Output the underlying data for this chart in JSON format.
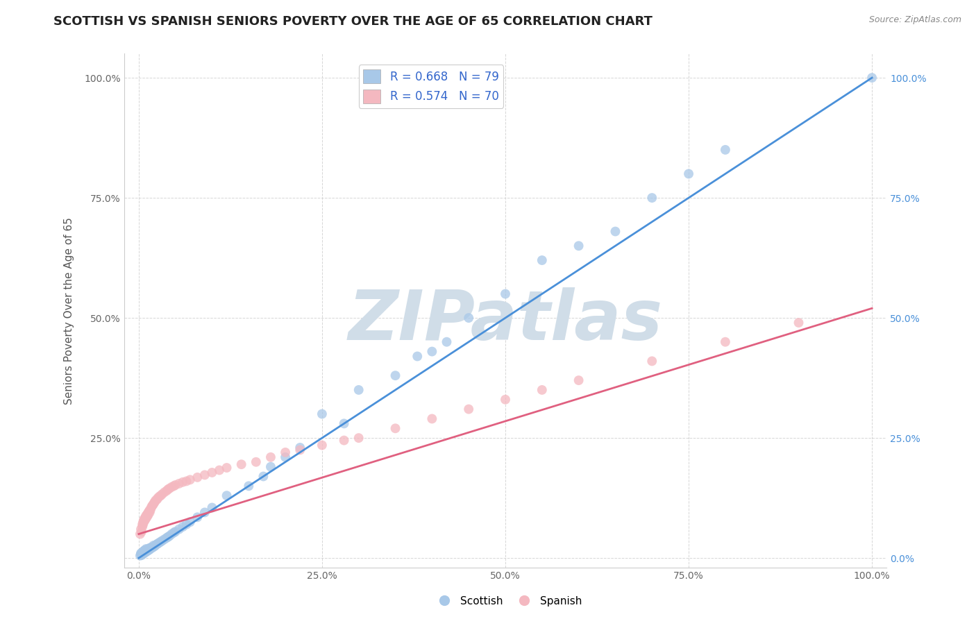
{
  "title": "SCOTTISH VS SPANISH SENIORS POVERTY OVER THE AGE OF 65 CORRELATION CHART",
  "source": "Source: ZipAtlas.com",
  "ylabel": "Seniors Poverty Over the Age of 65",
  "xlabel": "",
  "xlim": [
    -0.02,
    1.02
  ],
  "ylim": [
    -0.02,
    1.05
  ],
  "xticks": [
    0,
    0.25,
    0.5,
    0.75,
    1.0
  ],
  "yticks": [
    0,
    0.25,
    0.5,
    0.75,
    1.0
  ],
  "xticklabels": [
    "0.0%",
    "25.0%",
    "50.0%",
    "75.0%",
    "100.0%"
  ],
  "yticklabels": [
    "",
    "25.0%",
    "50.0%",
    "75.0%",
    "100.0%"
  ],
  "right_yticklabels": [
    "0.0%",
    "25.0%",
    "50.0%",
    "75.0%",
    "100.0%"
  ],
  "scottish_color": "#a8c8e8",
  "spanish_color": "#f4b8c0",
  "scottish_line_color": "#4a90d9",
  "spanish_line_color": "#e06080",
  "r_scottish": 0.668,
  "n_scottish": 79,
  "r_spanish": 0.574,
  "n_spanish": 70,
  "legend_color": "#3366cc",
  "watermark": "ZIPatlas",
  "scottish_line_x": [
    0.0,
    1.0
  ],
  "scottish_line_y": [
    0.0,
    1.0
  ],
  "spanish_line_x": [
    0.0,
    1.0
  ],
  "spanish_line_y": [
    0.05,
    0.52
  ],
  "scottish_data": [
    [
      0.002,
      0.005
    ],
    [
      0.003,
      0.008
    ],
    [
      0.003,
      0.01
    ],
    [
      0.004,
      0.006
    ],
    [
      0.004,
      0.009
    ],
    [
      0.005,
      0.008
    ],
    [
      0.005,
      0.01
    ],
    [
      0.005,
      0.012
    ],
    [
      0.006,
      0.009
    ],
    [
      0.006,
      0.011
    ],
    [
      0.006,
      0.013
    ],
    [
      0.007,
      0.01
    ],
    [
      0.007,
      0.012
    ],
    [
      0.007,
      0.015
    ],
    [
      0.008,
      0.011
    ],
    [
      0.008,
      0.013
    ],
    [
      0.008,
      0.016
    ],
    [
      0.009,
      0.012
    ],
    [
      0.009,
      0.015
    ],
    [
      0.01,
      0.013
    ],
    [
      0.01,
      0.016
    ],
    [
      0.01,
      0.019
    ],
    [
      0.011,
      0.014
    ],
    [
      0.011,
      0.017
    ],
    [
      0.012,
      0.015
    ],
    [
      0.012,
      0.018
    ],
    [
      0.013,
      0.016
    ],
    [
      0.013,
      0.019
    ],
    [
      0.014,
      0.017
    ],
    [
      0.015,
      0.018
    ],
    [
      0.015,
      0.021
    ],
    [
      0.016,
      0.02
    ],
    [
      0.017,
      0.022
    ],
    [
      0.018,
      0.021
    ],
    [
      0.02,
      0.023
    ],
    [
      0.02,
      0.026
    ],
    [
      0.022,
      0.025
    ],
    [
      0.023,
      0.027
    ],
    [
      0.025,
      0.029
    ],
    [
      0.026,
      0.03
    ],
    [
      0.028,
      0.032
    ],
    [
      0.03,
      0.034
    ],
    [
      0.032,
      0.036
    ],
    [
      0.035,
      0.039
    ],
    [
      0.038,
      0.042
    ],
    [
      0.04,
      0.044
    ],
    [
      0.042,
      0.046
    ],
    [
      0.045,
      0.05
    ],
    [
      0.048,
      0.053
    ],
    [
      0.05,
      0.055
    ],
    [
      0.055,
      0.06
    ],
    [
      0.06,
      0.065
    ],
    [
      0.065,
      0.07
    ],
    [
      0.07,
      0.075
    ],
    [
      0.08,
      0.085
    ],
    [
      0.09,
      0.095
    ],
    [
      0.1,
      0.105
    ],
    [
      0.12,
      0.13
    ],
    [
      0.15,
      0.15
    ],
    [
      0.17,
      0.17
    ],
    [
      0.18,
      0.19
    ],
    [
      0.2,
      0.21
    ],
    [
      0.22,
      0.23
    ],
    [
      0.25,
      0.3
    ],
    [
      0.28,
      0.28
    ],
    [
      0.3,
      0.35
    ],
    [
      0.35,
      0.38
    ],
    [
      0.38,
      0.42
    ],
    [
      0.4,
      0.43
    ],
    [
      0.42,
      0.45
    ],
    [
      0.45,
      0.5
    ],
    [
      0.5,
      0.55
    ],
    [
      0.55,
      0.62
    ],
    [
      0.6,
      0.65
    ],
    [
      0.65,
      0.68
    ],
    [
      0.7,
      0.75
    ],
    [
      0.75,
      0.8
    ],
    [
      0.8,
      0.85
    ],
    [
      1.0,
      1.0
    ]
  ],
  "spanish_data": [
    [
      0.002,
      0.05
    ],
    [
      0.003,
      0.06
    ],
    [
      0.004,
      0.055
    ],
    [
      0.005,
      0.07
    ],
    [
      0.005,
      0.065
    ],
    [
      0.006,
      0.07
    ],
    [
      0.006,
      0.075
    ],
    [
      0.007,
      0.08
    ],
    [
      0.007,
      0.075
    ],
    [
      0.008,
      0.082
    ],
    [
      0.008,
      0.078
    ],
    [
      0.009,
      0.085
    ],
    [
      0.009,
      0.08
    ],
    [
      0.01,
      0.088
    ],
    [
      0.01,
      0.083
    ],
    [
      0.011,
      0.09
    ],
    [
      0.011,
      0.085
    ],
    [
      0.012,
      0.092
    ],
    [
      0.012,
      0.088
    ],
    [
      0.013,
      0.095
    ],
    [
      0.013,
      0.09
    ],
    [
      0.014,
      0.097
    ],
    [
      0.015,
      0.1
    ],
    [
      0.015,
      0.095
    ],
    [
      0.016,
      0.1
    ],
    [
      0.017,
      0.105
    ],
    [
      0.018,
      0.108
    ],
    [
      0.019,
      0.11
    ],
    [
      0.02,
      0.112
    ],
    [
      0.021,
      0.115
    ],
    [
      0.022,
      0.117
    ],
    [
      0.023,
      0.12
    ],
    [
      0.025,
      0.122
    ],
    [
      0.026,
      0.125
    ],
    [
      0.028,
      0.128
    ],
    [
      0.03,
      0.13
    ],
    [
      0.032,
      0.133
    ],
    [
      0.035,
      0.137
    ],
    [
      0.038,
      0.14
    ],
    [
      0.04,
      0.143
    ],
    [
      0.042,
      0.145
    ],
    [
      0.045,
      0.148
    ],
    [
      0.048,
      0.15
    ],
    [
      0.05,
      0.152
    ],
    [
      0.055,
      0.155
    ],
    [
      0.06,
      0.158
    ],
    [
      0.065,
      0.16
    ],
    [
      0.07,
      0.163
    ],
    [
      0.08,
      0.168
    ],
    [
      0.09,
      0.173
    ],
    [
      0.1,
      0.178
    ],
    [
      0.11,
      0.183
    ],
    [
      0.12,
      0.188
    ],
    [
      0.14,
      0.195
    ],
    [
      0.16,
      0.2
    ],
    [
      0.18,
      0.21
    ],
    [
      0.2,
      0.22
    ],
    [
      0.22,
      0.225
    ],
    [
      0.25,
      0.235
    ],
    [
      0.28,
      0.245
    ],
    [
      0.3,
      0.25
    ],
    [
      0.35,
      0.27
    ],
    [
      0.4,
      0.29
    ],
    [
      0.45,
      0.31
    ],
    [
      0.5,
      0.33
    ],
    [
      0.55,
      0.35
    ],
    [
      0.6,
      0.37
    ],
    [
      0.7,
      0.41
    ],
    [
      0.8,
      0.45
    ],
    [
      0.9,
      0.49
    ]
  ],
  "background_color": "#ffffff",
  "grid_color": "#cccccc",
  "title_fontsize": 13,
  "axis_fontsize": 11,
  "tick_fontsize": 10,
  "watermark_color": "#d0dde8",
  "watermark_fontsize": 72
}
